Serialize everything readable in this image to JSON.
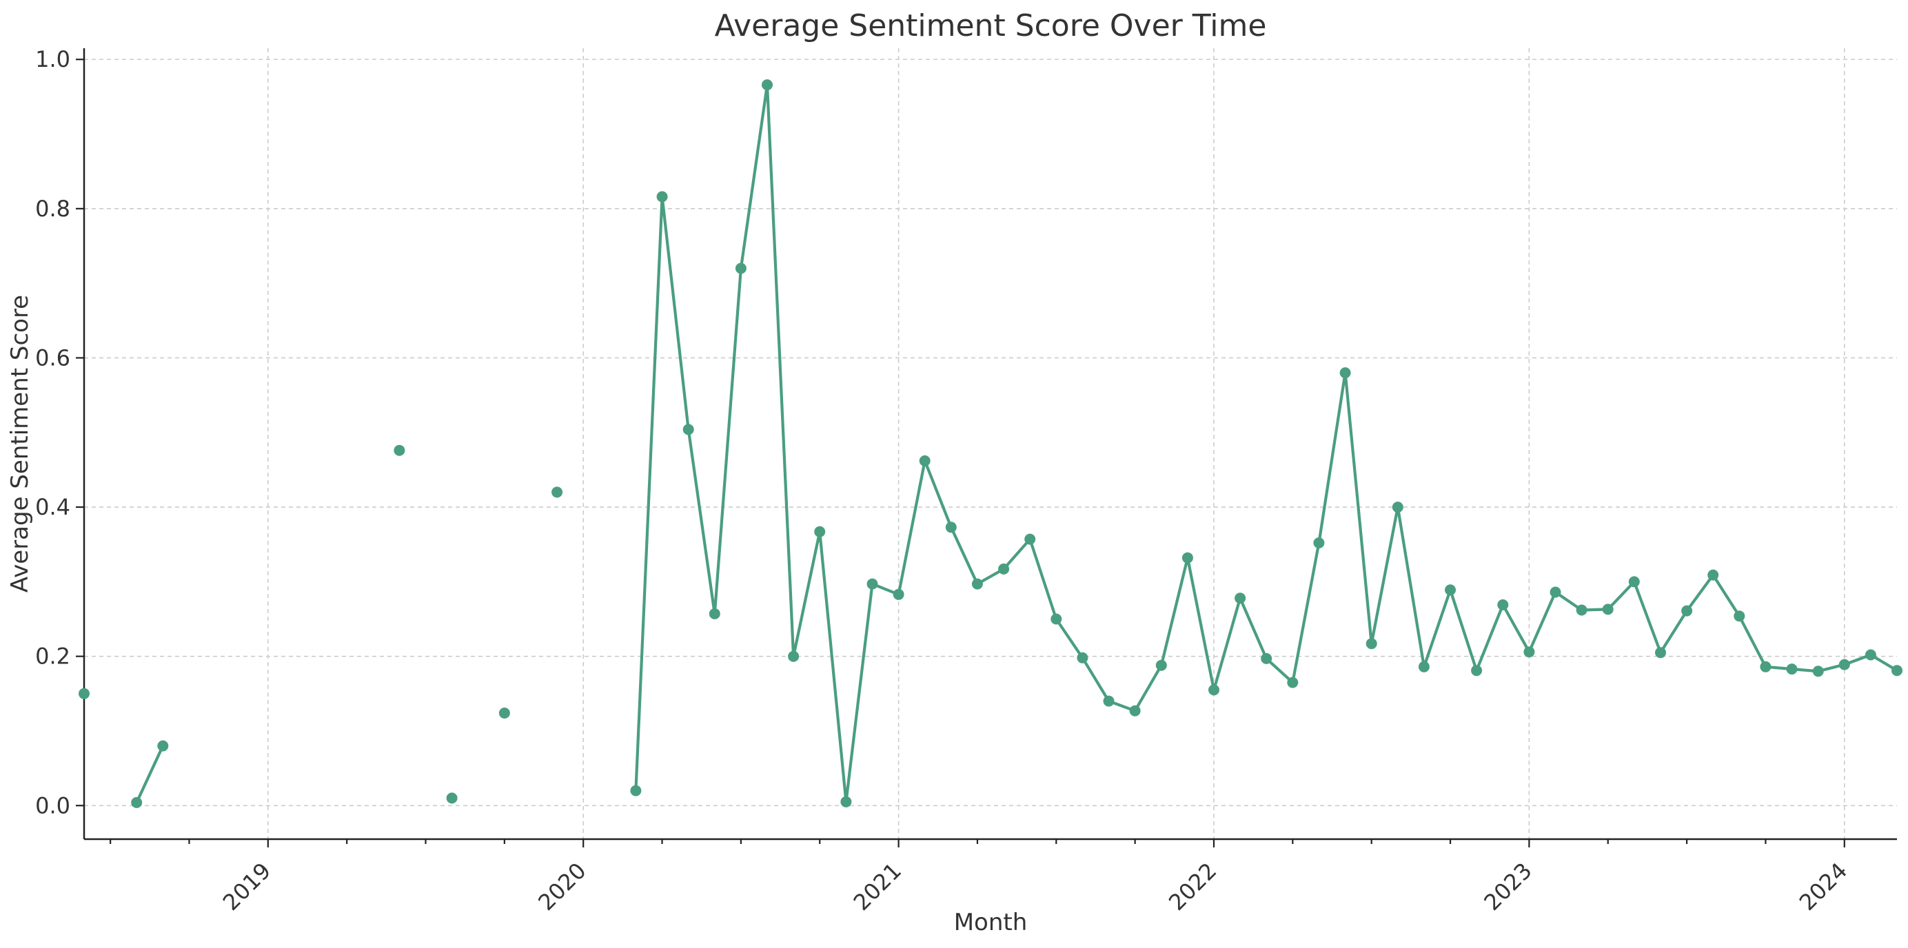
{
  "chart_data": {
    "type": "line",
    "title": "Average Sentiment Score Over Time",
    "xlabel": "Month",
    "ylabel": "Average Sentiment Score",
    "x_axis_type": "date",
    "xlim": [
      "2018-06",
      "2024-03"
    ],
    "ylim": [
      -0.045,
      1.015
    ],
    "y_ticks": [
      0.0,
      0.2,
      0.4,
      0.6,
      0.8,
      1.0
    ],
    "y_tick_labels": [
      "0.0",
      "0.2",
      "0.4",
      "0.6",
      "0.8",
      "1.0"
    ],
    "x_ticks": [
      "2019-01",
      "2020-01",
      "2021-01",
      "2022-01",
      "2023-01",
      "2024-01"
    ],
    "x_tick_labels": [
      "2019",
      "2020",
      "2021",
      "2022",
      "2023",
      "2024"
    ],
    "x_tick_rotation_deg": 45,
    "grid": true,
    "legend": "none",
    "line_color": "#4a9e80",
    "series": [
      {
        "x": [
          "2018-06",
          "2018-07",
          "2018-08",
          "2018-09",
          "2018-10",
          "2018-11",
          "2018-12",
          "2019-01",
          "2019-02",
          "2019-03",
          "2019-04",
          "2019-05",
          "2019-06",
          "2019-07",
          "2019-08",
          "2019-09",
          "2019-10",
          "2019-11",
          "2019-12",
          "2020-01",
          "2020-02",
          "2020-03",
          "2020-04",
          "2020-05",
          "2020-06",
          "2020-07",
          "2020-08",
          "2020-09",
          "2020-10",
          "2020-11",
          "2020-12",
          "2021-01",
          "2021-02",
          "2021-03",
          "2021-04",
          "2021-05",
          "2021-06",
          "2021-07",
          "2021-08",
          "2021-09",
          "2021-10",
          "2021-11",
          "2021-12",
          "2022-01",
          "2022-02",
          "2022-03",
          "2022-04",
          "2022-05",
          "2022-06",
          "2022-07",
          "2022-08",
          "2022-09",
          "2022-10",
          "2022-11",
          "2022-12",
          "2023-01",
          "2023-02",
          "2023-03",
          "2023-04",
          "2023-05",
          "2023-06",
          "2023-07",
          "2023-08",
          "2023-09",
          "2023-10",
          "2023-11",
          "2023-12",
          "2024-01",
          "2024-02",
          "2024-03"
        ],
        "values": [
          0.15,
          null,
          0.004,
          0.08,
          null,
          null,
          null,
          null,
          null,
          null,
          null,
          null,
          0.476,
          null,
          0.01,
          null,
          0.124,
          null,
          0.42,
          null,
          null,
          0.02,
          0.816,
          0.504,
          0.257,
          0.72,
          0.966,
          0.2,
          0.367,
          0.005,
          0.297,
          0.283,
          0.462,
          0.373,
          0.297,
          0.317,
          0.357,
          0.25,
          0.198,
          0.14,
          0.127,
          0.188,
          0.332,
          0.155,
          0.278,
          0.197,
          0.165,
          0.352,
          0.58,
          0.217,
          0.4,
          0.186,
          0.289,
          0.181,
          0.269,
          0.206,
          0.286,
          0.262,
          0.263,
          0.3,
          0.205,
          0.261,
          0.309,
          0.254,
          0.186,
          0.183,
          0.18,
          0.189,
          0.202,
          0.181
        ]
      }
    ]
  }
}
